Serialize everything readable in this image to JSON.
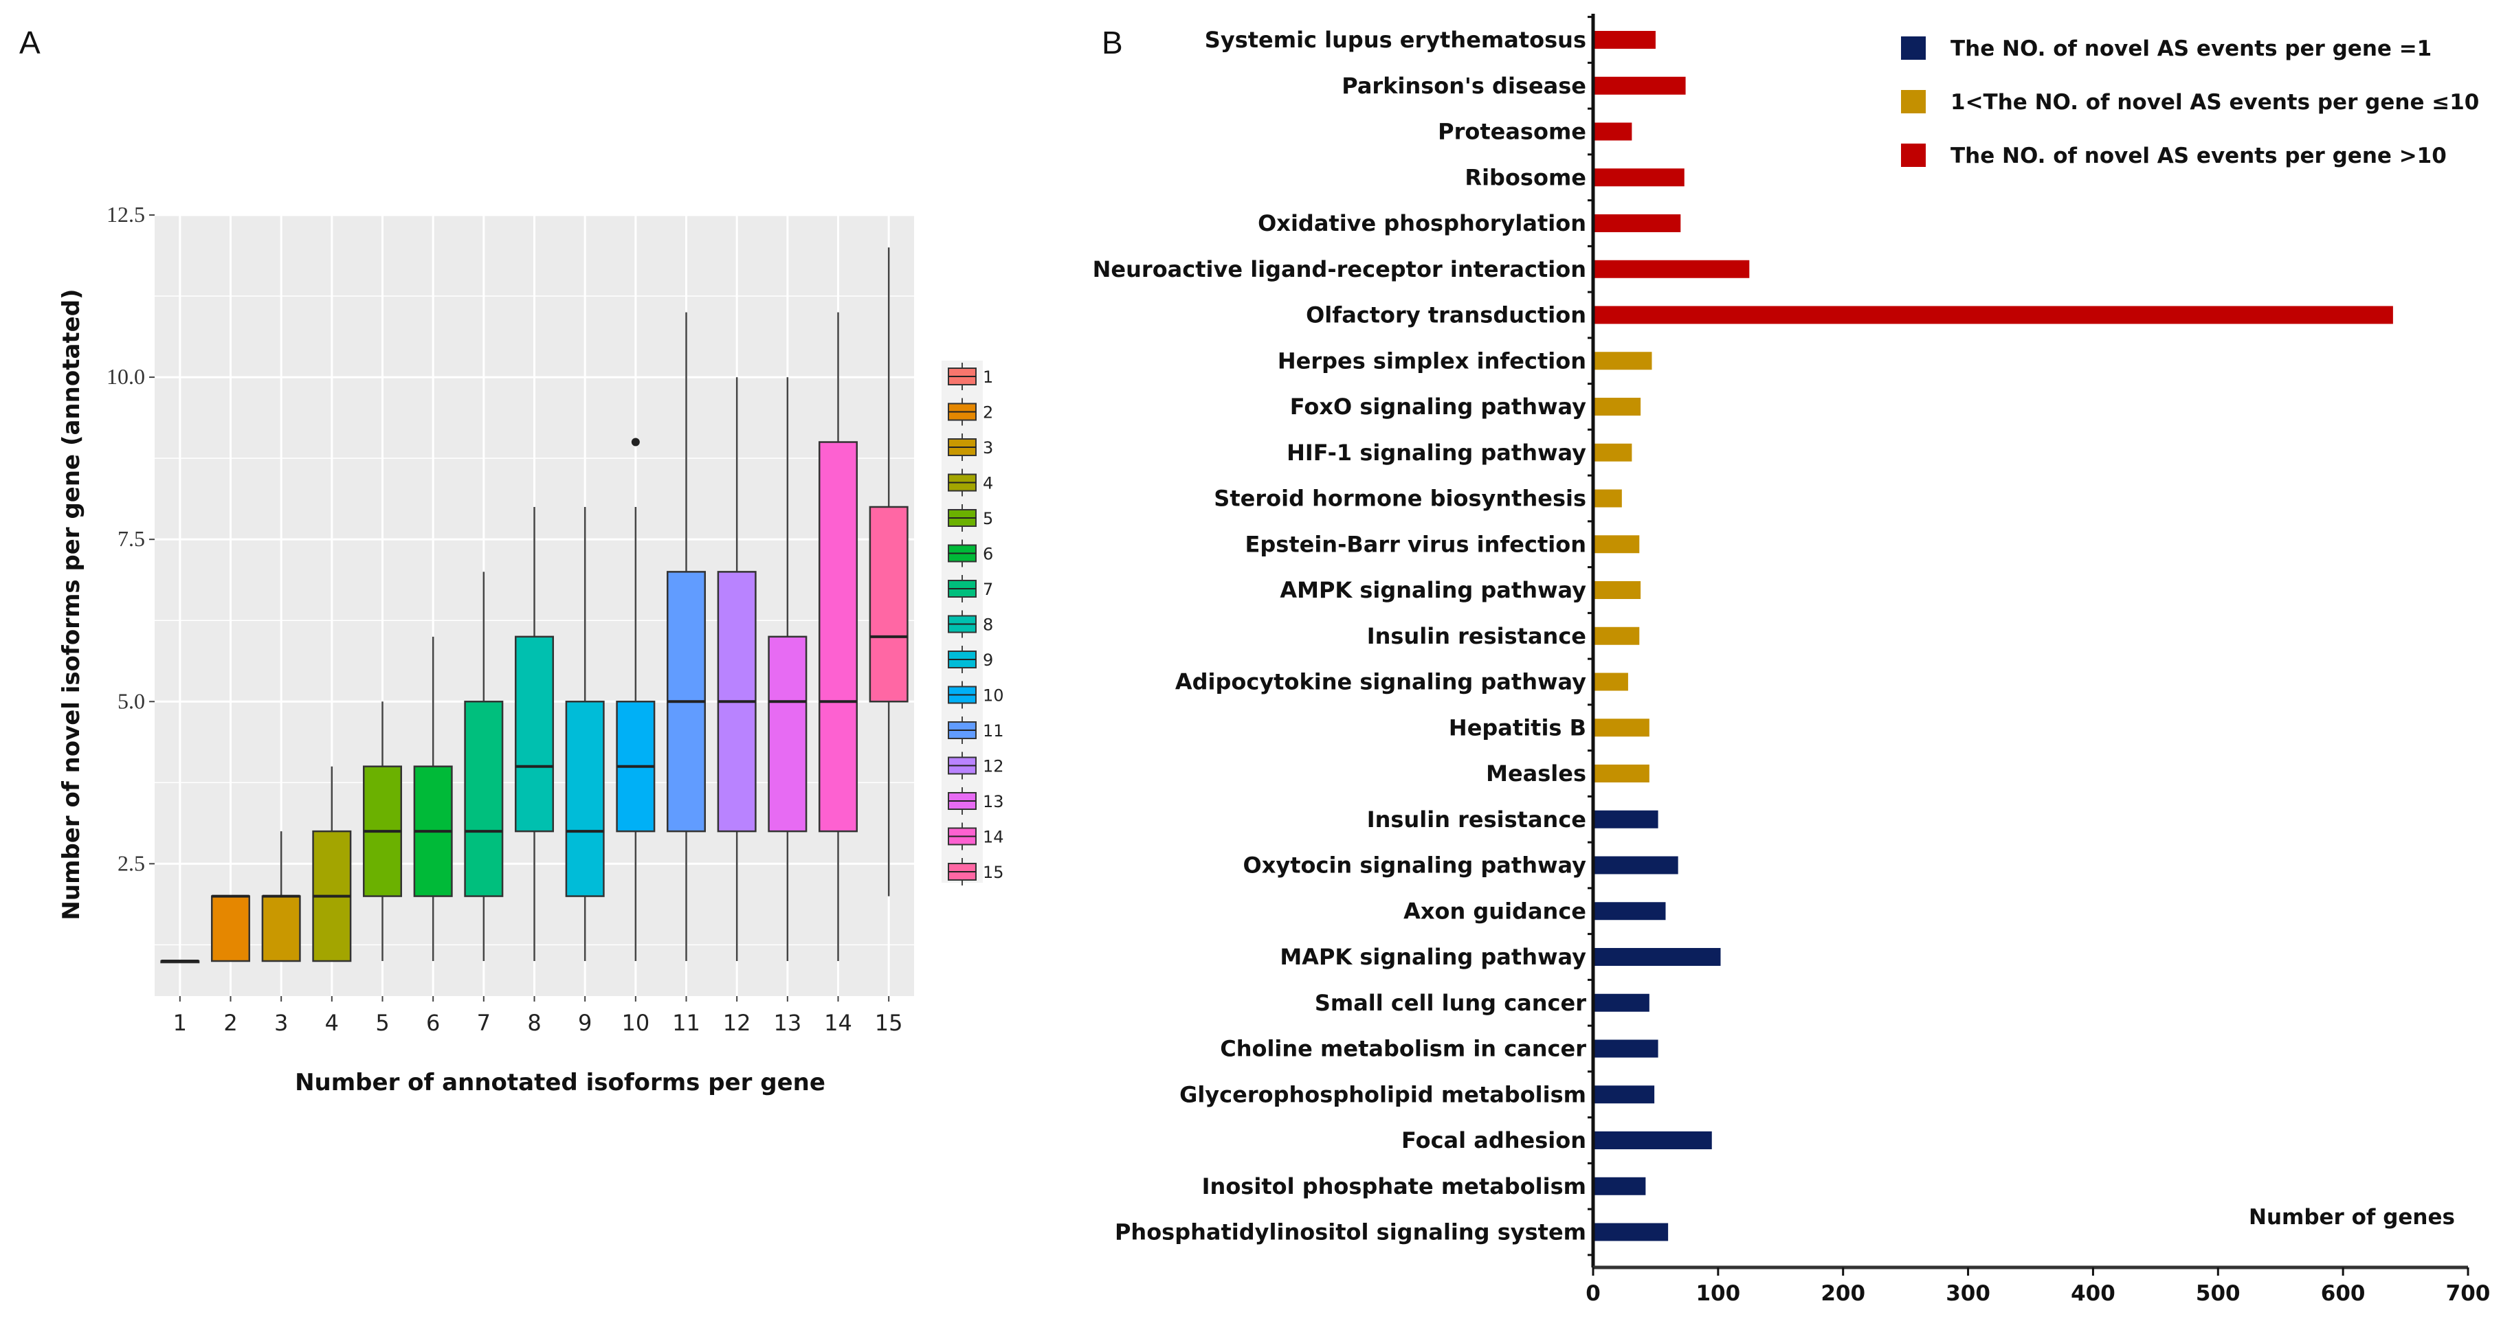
{
  "chart_data": [
    {
      "panel_label": "A",
      "type": "box",
      "xlabel": "Number of annotated isoforms per gene",
      "ylabel": "Number of novel isoforms per gene (annotated)",
      "ylim": [
        0.46,
        12.5
      ],
      "yticks": [
        "2.5",
        "5.0",
        "7.5",
        "10.0",
        "12.5"
      ],
      "ytick_values": [
        2.5,
        5.0,
        7.5,
        10.0,
        12.5
      ],
      "grid": true,
      "legend_placement": "right",
      "categories": [
        "1",
        "2",
        "3",
        "4",
        "5",
        "6",
        "7",
        "8",
        "9",
        "10",
        "11",
        "12",
        "13",
        "14",
        "15"
      ],
      "colors": [
        "#F8766D",
        "#E58700",
        "#C99800",
        "#A3A500",
        "#6BB100",
        "#00BA38",
        "#00BF7D",
        "#00C0AF",
        "#00BCD8",
        "#00B0F6",
        "#619CFF",
        "#B983FF",
        "#E76BF3",
        "#FD61D1",
        "#FF67A4"
      ],
      "boxes": [
        {
          "min": 1,
          "q1": 1,
          "median": 1,
          "q3": 1,
          "max": 1
        },
        {
          "min": 1,
          "q1": 1,
          "median": 2,
          "q3": 2,
          "max": 2
        },
        {
          "min": 1,
          "q1": 1,
          "median": 2,
          "q3": 2,
          "max": 3
        },
        {
          "min": 1,
          "q1": 1,
          "median": 2,
          "q3": 3,
          "max": 4
        },
        {
          "min": 1,
          "q1": 2,
          "median": 3,
          "q3": 4,
          "max": 5
        },
        {
          "min": 1,
          "q1": 2,
          "median": 3,
          "q3": 4,
          "max": 6
        },
        {
          "min": 1,
          "q1": 2,
          "median": 3,
          "q3": 5,
          "max": 7
        },
        {
          "min": 1,
          "q1": 3,
          "median": 4,
          "q3": 6,
          "max": 8
        },
        {
          "min": 1,
          "q1": 2,
          "median": 3,
          "q3": 5,
          "max": 8
        },
        {
          "min": 1,
          "q1": 3,
          "median": 4,
          "q3": 5,
          "max": 8,
          "outliers": [
            9
          ]
        },
        {
          "min": 1,
          "q1": 3,
          "median": 5,
          "q3": 7,
          "max": 11
        },
        {
          "min": 1,
          "q1": 3,
          "median": 5,
          "q3": 7,
          "max": 10
        },
        {
          "min": 1,
          "q1": 3,
          "median": 5,
          "q3": 6,
          "max": 10
        },
        {
          "min": 1,
          "q1": 3,
          "median": 5,
          "q3": 9,
          "max": 11
        },
        {
          "min": 2,
          "q1": 5,
          "median": 6,
          "q3": 8,
          "max": 12
        }
      ]
    },
    {
      "panel_label": "B",
      "type": "bar",
      "orientation": "horizontal",
      "xlabel": "Number of genes",
      "xlim": [
        0,
        700
      ],
      "xticks": [
        "0",
        "100",
        "200",
        "300",
        "400",
        "500",
        "600",
        "700"
      ],
      "xtick_values": [
        0,
        100,
        200,
        300,
        400,
        500,
        600,
        700
      ],
      "grid": false,
      "legend_placement": "top-right",
      "legend": [
        {
          "name": "The NO. of novel AS events per gene =1",
          "color": "#0B1F5C"
        },
        {
          "name": "1<The NO. of novel AS events per gene ≤10",
          "color": "#C49000"
        },
        {
          "name": "The NO. of novel AS events per gene >10",
          "color": "#C00000"
        }
      ],
      "bars": [
        {
          "label": "Systemic lupus erythematosus",
          "value": 50,
          "group": 2
        },
        {
          "label": "Parkinson's disease",
          "value": 74,
          "group": 2
        },
        {
          "label": "Proteasome",
          "value": 31,
          "group": 2
        },
        {
          "label": "Ribosome",
          "value": 73,
          "group": 2
        },
        {
          "label": "Oxidative phosphorylation",
          "value": 70,
          "group": 2
        },
        {
          "label": "Neuroactive ligand-receptor interaction",
          "value": 125,
          "group": 2
        },
        {
          "label": "Olfactory transduction",
          "value": 640,
          "group": 2
        },
        {
          "label": "Herpes simplex infection",
          "value": 47,
          "group": 1
        },
        {
          "label": "FoxO signaling pathway",
          "value": 38,
          "group": 1
        },
        {
          "label": "HIF-1 signaling pathway",
          "value": 31,
          "group": 1
        },
        {
          "label": "Steroid hormone biosynthesis",
          "value": 23,
          "group": 1
        },
        {
          "label": "Epstein-Barr virus infection",
          "value": 37,
          "group": 1
        },
        {
          "label": "AMPK signaling pathway",
          "value": 38,
          "group": 1
        },
        {
          "label": "Insulin resistance",
          "value": 37,
          "group": 1
        },
        {
          "label": "Adipocytokine signaling pathway",
          "value": 28,
          "group": 1
        },
        {
          "label": "Hepatitis B",
          "value": 45,
          "group": 1
        },
        {
          "label": "Measles",
          "value": 45,
          "group": 1
        },
        {
          "label": "Insulin resistance",
          "value": 52,
          "group": 0
        },
        {
          "label": "Oxytocin signaling pathway",
          "value": 68,
          "group": 0
        },
        {
          "label": "Axon guidance",
          "value": 58,
          "group": 0
        },
        {
          "label": "MAPK signaling pathway",
          "value": 102,
          "group": 0
        },
        {
          "label": "Small cell lung cancer",
          "value": 45,
          "group": 0
        },
        {
          "label": "Choline metabolism in cancer",
          "value": 52,
          "group": 0
        },
        {
          "label": "Glycerophospholipid metabolism",
          "value": 49,
          "group": 0
        },
        {
          "label": "Focal adhesion",
          "value": 95,
          "group": 0
        },
        {
          "label": "Inositol phosphate metabolism",
          "value": 42,
          "group": 0
        },
        {
          "label": "Phosphatidylinositol signaling system",
          "value": 60,
          "group": 0
        }
      ]
    }
  ]
}
